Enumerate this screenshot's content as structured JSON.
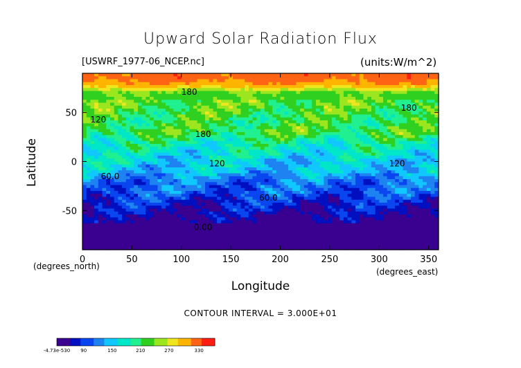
{
  "chart_data": {
    "type": "heatmap",
    "title": "Upward Solar Radiation Flux",
    "file_label": "[USWRF_1977-06_NCEP.nc]",
    "units_label": "(units:W/m^2)",
    "xlabel": "Longitude",
    "ylabel": "Latitude",
    "x_unit_label": "(degrees_east)",
    "y_unit_label": "(degrees_north)",
    "xlim": [
      0,
      360
    ],
    "ylim": [
      -90,
      90
    ],
    "x_ticks": [
      0,
      50,
      100,
      150,
      200,
      250,
      300,
      350
    ],
    "y_ticks": [
      -50,
      0,
      50
    ],
    "contour_interval_text": "CONTOUR INTERVAL = 3.000E+01",
    "contour_labels": [
      {
        "text": "180",
        "x": 108,
        "y": 68
      },
      {
        "text": "180",
        "x": 330,
        "y": 52
      },
      {
        "text": "180",
        "x": 122,
        "y": 25
      },
      {
        "text": "120",
        "x": 16,
        "y": 40
      },
      {
        "text": "120",
        "x": 136,
        "y": -5
      },
      {
        "text": "120",
        "x": 318,
        "y": -5
      },
      {
        "text": "60.0",
        "x": 28,
        "y": -18
      },
      {
        "text": "60.0",
        "x": 188,
        "y": -40
      },
      {
        "text": "0.00",
        "x": 122,
        "y": -70
      }
    ],
    "lat_profile": {
      "lat": [
        85,
        78,
        70,
        60,
        50,
        40,
        30,
        20,
        10,
        0,
        -10,
        -20,
        -30,
        -40,
        -50,
        -60,
        -68,
        -75,
        -90
      ],
      "value": [
        290,
        270,
        195,
        195,
        185,
        175,
        185,
        150,
        135,
        120,
        110,
        75,
        70,
        45,
        30,
        10,
        -5,
        -5,
        -5
      ]
    },
    "colorbar": {
      "ticks": [
        "-4.73e-530",
        "90",
        "150",
        "210",
        "270",
        "330"
      ],
      "range": [
        -5,
        330
      ]
    },
    "colors": [
      "#3a0090",
      "#0010c0",
      "#0a46f0",
      "#1e82f0",
      "#10c8ff",
      "#00e6c8",
      "#20f090",
      "#30d020",
      "#9be61e",
      "#f0e620",
      "#ffb400",
      "#ff6414",
      "#ff1e14"
    ]
  }
}
